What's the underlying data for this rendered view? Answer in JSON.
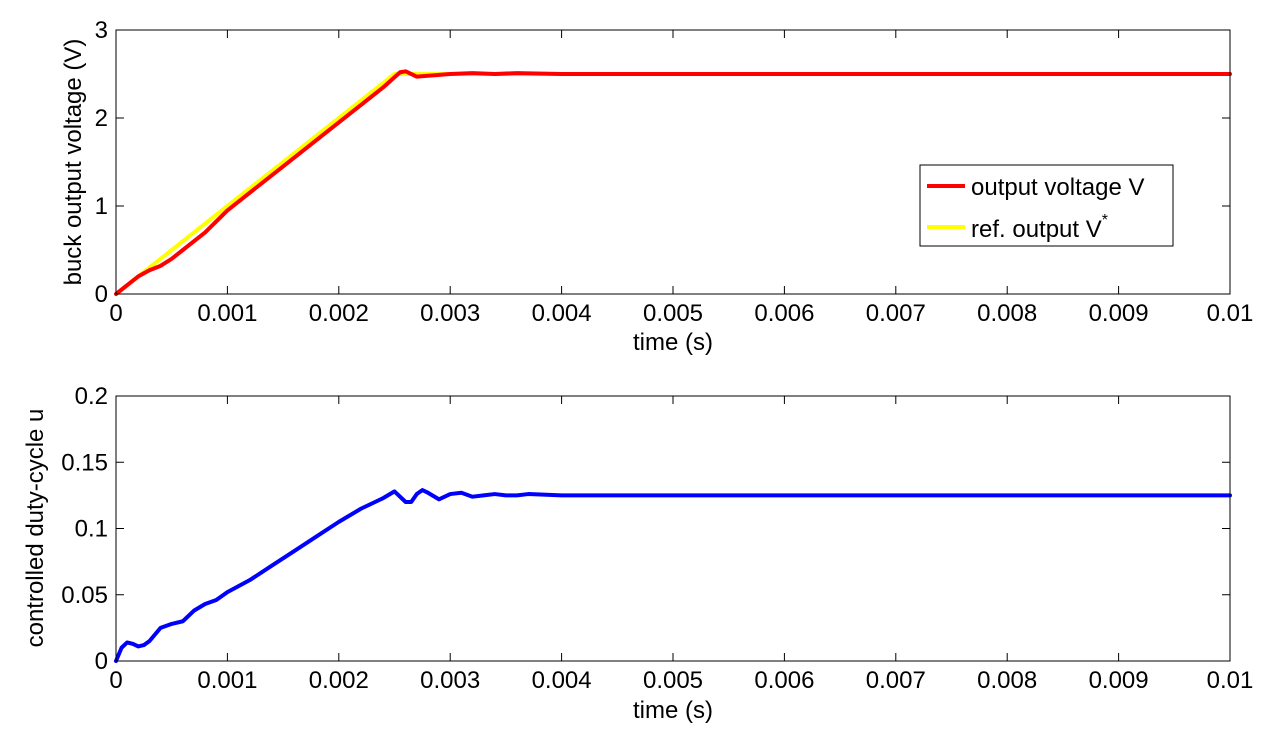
{
  "chart_data": [
    {
      "type": "line",
      "xlabel": "time (s)",
      "ylabel": "buck output voltage (V)",
      "xlim": [
        0,
        0.01
      ],
      "ylim": [
        0,
        3
      ],
      "xticks": [
        "0",
        "0.001",
        "0.002",
        "0.003",
        "0.004",
        "0.005",
        "0.006",
        "0.007",
        "0.008",
        "0.009",
        "0.01"
      ],
      "yticks": [
        "0",
        "1",
        "2",
        "3"
      ],
      "grid": false,
      "legend_position": "right",
      "series": [
        {
          "name": "ref. output V*",
          "name_base": "ref. output V",
          "name_sup": "*",
          "color": "#ffff00",
          "x": [
            0,
            0.0025,
            0.01
          ],
          "y": [
            0,
            2.5,
            2.5
          ]
        },
        {
          "name": "output voltage V",
          "color": "#ff0000",
          "x": [
            0,
            0.0001,
            0.0002,
            0.0003,
            0.0004,
            0.0005,
            0.0006,
            0.0008,
            0.001,
            0.0015,
            0.002,
            0.0024,
            0.00255,
            0.0026,
            0.0027,
            0.0028,
            0.003,
            0.0032,
            0.0034,
            0.0036,
            0.004,
            0.01
          ],
          "y": [
            0,
            0.1,
            0.2,
            0.27,
            0.32,
            0.4,
            0.5,
            0.7,
            0.95,
            1.45,
            1.95,
            2.35,
            2.52,
            2.53,
            2.47,
            2.48,
            2.5,
            2.51,
            2.5,
            2.51,
            2.5,
            2.5
          ]
        }
      ]
    },
    {
      "type": "line",
      "xlabel": "time (s)",
      "ylabel": "controlled duty-cycle u",
      "xlim": [
        0,
        0.01
      ],
      "ylim": [
        0,
        0.2
      ],
      "xticks": [
        "0",
        "0.001",
        "0.002",
        "0.003",
        "0.004",
        "0.005",
        "0.006",
        "0.007",
        "0.008",
        "0.009",
        "0.01"
      ],
      "yticks": [
        "0",
        "0.05",
        "0.1",
        "0.15",
        "0.2"
      ],
      "grid": false,
      "series": [
        {
          "name": "",
          "color": "#0000ff",
          "x": [
            0,
            5e-05,
            0.0001,
            0.00015,
            0.0002,
            0.00025,
            0.0003,
            0.0004,
            0.0005,
            0.0006,
            0.0007,
            0.0008,
            0.0009,
            0.001,
            0.0012,
            0.0014,
            0.0016,
            0.0018,
            0.002,
            0.0022,
            0.0024,
            0.0025,
            0.0026,
            0.00265,
            0.0027,
            0.00275,
            0.0028,
            0.0029,
            0.003,
            0.0031,
            0.0032,
            0.0033,
            0.0034,
            0.0035,
            0.0036,
            0.0037,
            0.004,
            0.01
          ],
          "y": [
            0,
            0.01,
            0.014,
            0.013,
            0.011,
            0.012,
            0.015,
            0.025,
            0.028,
            0.03,
            0.038,
            0.043,
            0.046,
            0.052,
            0.061,
            0.072,
            0.083,
            0.094,
            0.105,
            0.115,
            0.123,
            0.128,
            0.12,
            0.12,
            0.126,
            0.129,
            0.127,
            0.122,
            0.126,
            0.127,
            0.124,
            0.125,
            0.126,
            0.125,
            0.125,
            0.126,
            0.125,
            0.125
          ]
        }
      ]
    }
  ]
}
